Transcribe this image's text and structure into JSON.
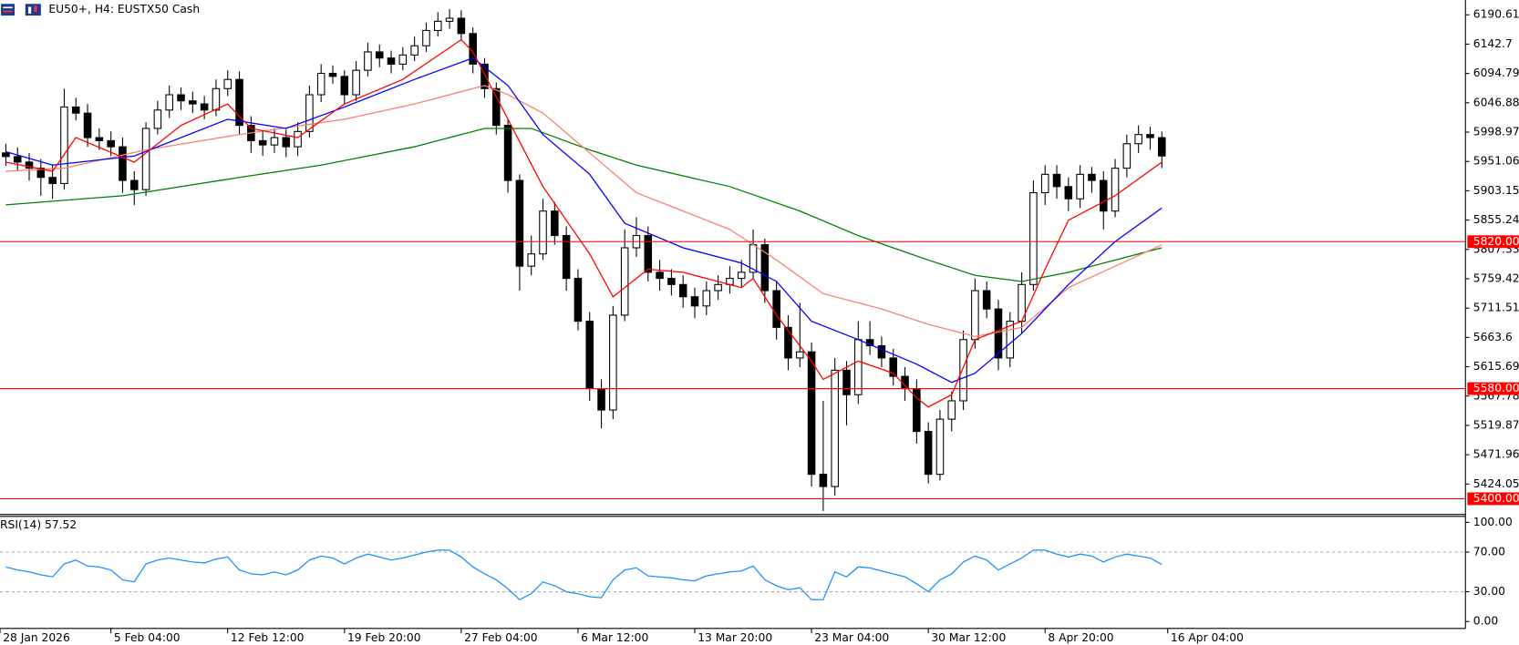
{
  "chart_data": [
    {
      "type": "candlestick",
      "title": "EU50+, H4:  EUSTX50 Cash",
      "color": "#000000",
      "open": [
        5965,
        5959,
        5950,
        5940,
        5925,
        5915,
        6040,
        6030,
        5990,
        5985,
        5975,
        5920,
        5905,
        6005,
        6035,
        6060,
        6050,
        6045,
        6035,
        6070,
        6085,
        6010,
        5985,
        5978,
        5990,
        5975,
        6000,
        6060,
        6095,
        6090,
        6060,
        6100,
        6130,
        6120,
        6110,
        6125,
        6140,
        6165,
        6180,
        6185,
        6160,
        6110,
        6070,
        6010,
        5920,
        5780,
        5800,
        5870,
        5830,
        5760,
        5690,
        5580,
        5545,
        5700,
        5810,
        5830,
        5770,
        5760,
        5750,
        5730,
        5715,
        5740,
        5750,
        5760,
        5770,
        5815,
        5740,
        5680,
        5630,
        5640,
        5440,
        5420,
        5610,
        5570,
        5660,
        5650,
        5630,
        5600,
        5580,
        5510,
        5440,
        5530,
        5560,
        5660,
        5740,
        5710,
        5630,
        5690,
        5750,
        5900,
        5930,
        5910,
        5890,
        5930,
        5920,
        5870,
        5940,
        5980,
        5995,
        5990
      ],
      "high": [
        5980,
        5974,
        5965,
        5955,
        5945,
        6070,
        6055,
        6045,
        6005,
        6000,
        5990,
        5935,
        6015,
        6050,
        6075,
        6072,
        6065,
        6058,
        6085,
        6100,
        6098,
        6025,
        6000,
        6005,
        6003,
        6015,
        6075,
        6110,
        6108,
        6100,
        6115,
        6145,
        6142,
        6132,
        6138,
        6155,
        6178,
        6195,
        6200,
        6198,
        6170,
        6120,
        6080,
        6020,
        5930,
        5830,
        5890,
        5885,
        5845,
        5775,
        5705,
        5595,
        5715,
        5840,
        5860,
        5845,
        5790,
        5775,
        5765,
        5745,
        5755,
        5765,
        5780,
        5790,
        5840,
        5825,
        5755,
        5700,
        5720,
        5655,
        5560,
        5630,
        5625,
        5690,
        5690,
        5665,
        5645,
        5615,
        5595,
        5525,
        5545,
        5575,
        5675,
        5760,
        5755,
        5725,
        5705,
        5770,
        5920,
        5945,
        5945,
        5925,
        5945,
        5942,
        5935,
        5955,
        5995,
        6010,
        6008,
        6000
      ],
      "low": [
        5944,
        5935,
        5920,
        5895,
        5890,
        5905,
        6018,
        5975,
        5970,
        5960,
        5900,
        5880,
        5895,
        5995,
        6022,
        6035,
        6030,
        6020,
        6025,
        6058,
        5995,
        5965,
        5960,
        5965,
        5958,
        5960,
        5990,
        6048,
        6078,
        6045,
        6050,
        6090,
        6105,
        6095,
        6100,
        6115,
        6130,
        6155,
        6168,
        6148,
        6095,
        6055,
        5995,
        5900,
        5740,
        5765,
        5790,
        5815,
        5740,
        5675,
        5560,
        5515,
        5530,
        5690,
        5795,
        5755,
        5740,
        5732,
        5712,
        5695,
        5700,
        5725,
        5735,
        5745,
        5760,
        5720,
        5660,
        5610,
        5615,
        5420,
        5380,
        5405,
        5520,
        5555,
        5635,
        5615,
        5585,
        5560,
        5490,
        5425,
        5430,
        5510,
        5545,
        5645,
        5695,
        5610,
        5615,
        5670,
        5740,
        5880,
        5890,
        5870,
        5875,
        5900,
        5840,
        5860,
        5925,
        5965,
        5970,
        5940
      ],
      "close": [
        5959,
        5950,
        5940,
        5925,
        5915,
        6040,
        6030,
        5990,
        5985,
        5975,
        5920,
        5905,
        6005,
        6035,
        6060,
        6050,
        6045,
        6035,
        6070,
        6085,
        6010,
        5985,
        5978,
        5990,
        5975,
        6000,
        6060,
        6095,
        6090,
        6060,
        6100,
        6130,
        6120,
        6110,
        6125,
        6140,
        6165,
        6180,
        6185,
        6160,
        6110,
        6070,
        6010,
        5920,
        5780,
        5800,
        5870,
        5830,
        5760,
        5690,
        5580,
        5545,
        5700,
        5810,
        5830,
        5770,
        5760,
        5750,
        5730,
        5715,
        5740,
        5750,
        5760,
        5770,
        5815,
        5740,
        5680,
        5630,
        5640,
        5440,
        5420,
        5610,
        5570,
        5660,
        5650,
        5630,
        5600,
        5580,
        5510,
        5440,
        5530,
        5560,
        5660,
        5740,
        5710,
        5630,
        5690,
        5750,
        5900,
        5930,
        5910,
        5890,
        5930,
        5920,
        5870,
        5940,
        5980,
        5995,
        5990,
        5960
      ],
      "lines": [
        {
          "color": "#008000",
          "x": [
            0,
            10,
            20,
            27,
            35,
            41,
            45,
            50,
            54,
            62,
            68,
            73,
            79,
            83,
            87,
            91,
            95,
            99
          ],
          "values": [
            5880,
            5895,
            5925,
            5945,
            5975,
            6005,
            6005,
            5970,
            5945,
            5910,
            5870,
            5830,
            5790,
            5765,
            5755,
            5770,
            5790,
            5810
          ]
        },
        {
          "color": "#fa8072",
          "x": [
            0,
            5,
            12,
            20,
            29,
            35,
            41,
            43,
            46,
            50,
            54,
            58,
            62,
            66,
            70,
            75,
            79,
            83,
            87,
            91,
            95,
            99
          ],
          "values": [
            5935,
            5940,
            5970,
            5995,
            6020,
            6045,
            6075,
            6060,
            6030,
            5965,
            5900,
            5870,
            5840,
            5790,
            5735,
            5710,
            5685,
            5665,
            5680,
            5745,
            5780,
            5815
          ]
        },
        {
          "color": "#0000ff",
          "x": [
            0,
            4,
            11,
            19,
            24,
            29,
            35,
            40,
            43,
            46,
            50,
            53,
            58,
            63,
            66,
            69,
            73,
            78,
            81,
            83,
            87,
            91,
            95,
            99
          ],
          "values": [
            5967,
            5945,
            5960,
            6020,
            6005,
            6040,
            6085,
            6120,
            6075,
            5995,
            5930,
            5850,
            5810,
            5785,
            5755,
            5690,
            5660,
            5620,
            5590,
            5605,
            5670,
            5750,
            5820,
            5875
          ]
        },
        {
          "color": "#ff0000",
          "x": [
            0,
            4,
            6,
            11,
            15,
            19,
            21,
            25,
            29,
            34,
            39,
            40,
            43,
            46,
            50,
            52,
            55,
            58,
            63,
            64,
            66,
            69,
            70,
            73,
            76,
            78,
            79,
            81,
            83,
            87,
            89,
            91,
            95,
            99
          ],
          "values": [
            5950,
            5935,
            5990,
            5950,
            6010,
            6045,
            6005,
            5990,
            6045,
            6085,
            6150,
            6130,
            6020,
            5910,
            5800,
            5730,
            5775,
            5770,
            5745,
            5760,
            5700,
            5625,
            5595,
            5625,
            5605,
            5565,
            5550,
            5570,
            5660,
            5690,
            5775,
            5855,
            5895,
            5950
          ]
        }
      ],
      "levels": [
        {
          "value": 5820,
          "label": "5820.00"
        },
        {
          "value": 5580,
          "label": "5580.00"
        },
        {
          "value": 5400,
          "label": "5400.00"
        }
      ],
      "level_color": "#ff0000",
      "xlim": [
        -0.5,
        125
      ],
      "xticks": [
        {
          "value": -0.5,
          "label": "28 Jan 2026"
        },
        {
          "value": 9,
          "label": "5 Feb 04:00"
        },
        {
          "value": 19,
          "label": "12 Feb 12:00"
        },
        {
          "value": 29,
          "label": "19 Feb 20:00"
        },
        {
          "value": 39,
          "label": "27 Feb 04:00"
        },
        {
          "value": 49,
          "label": "6 Mar 12:00"
        },
        {
          "value": 59,
          "label": "13 Mar 20:00"
        },
        {
          "value": 69,
          "label": "23 Mar 04:00"
        },
        {
          "value": 79,
          "label": "30 Mar 12:00"
        },
        {
          "value": 89,
          "label": "8 Apr 20:00"
        },
        {
          "value": 99.5,
          "label": "16 Apr 04:00"
        }
      ],
      "ylim": [
        5376,
        6210
      ],
      "yticks": [
        6190.61,
        6142.7,
        6094.79,
        6046.88,
        5998.97,
        5951.06,
        5903.15,
        5855.24,
        5807.33,
        5759.42,
        5711.51,
        5663.6,
        5615.69,
        5567.78,
        5519.87,
        5471.96,
        5424.05
      ]
    },
    {
      "type": "line",
      "title": "RSI(14) 57.52",
      "color": "#1e90ff",
      "values": [
        55,
        52,
        50,
        47,
        45,
        58,
        62,
        56,
        55,
        52,
        42,
        40,
        58,
        62,
        64,
        62,
        60,
        59,
        63,
        65,
        52,
        48,
        47,
        50,
        47,
        52,
        62,
        66,
        64,
        58,
        64,
        68,
        65,
        62,
        64,
        67,
        70,
        72,
        72,
        65,
        55,
        48,
        42,
        33,
        22,
        28,
        40,
        36,
        30,
        28,
        25,
        24,
        42,
        52,
        54,
        46,
        45,
        44,
        42,
        41,
        46,
        48,
        50,
        51,
        56,
        42,
        36,
        32,
        34,
        22,
        22,
        50,
        45,
        55,
        54,
        51,
        48,
        45,
        38,
        30,
        42,
        48,
        60,
        66,
        62,
        52,
        58,
        64,
        72,
        72,
        68,
        65,
        68,
        66,
        60,
        65,
        68,
        66,
        64,
        57.52
      ],
      "levels": [
        70,
        30
      ],
      "xlim": [
        -0.5,
        125
      ],
      "ylim": [
        -7,
        106
      ],
      "yticks": [
        {
          "value": 100,
          "label": "100.00"
        },
        {
          "value": 70,
          "label": "70.00"
        },
        {
          "value": 30,
          "label": "30.00"
        },
        {
          "value": 0,
          "label": "0.00"
        }
      ]
    }
  ]
}
